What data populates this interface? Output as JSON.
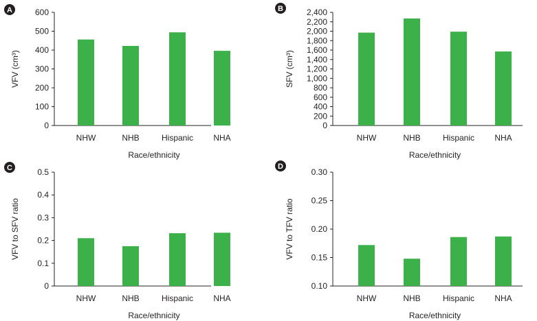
{
  "chart_data": [
    {
      "panel_label": "A",
      "type": "bar",
      "categories": [
        "NHW",
        "NHB",
        "Hispanic",
        "NHA"
      ],
      "values": [
        456,
        422,
        494,
        396
      ],
      "ylabel": "VFV (cm³)",
      "xlabel": "Race/ethnicity",
      "ylim": [
        0,
        600
      ],
      "yticks": [
        "0",
        "100",
        "200",
        "300",
        "400",
        "500",
        "600"
      ],
      "bar_color": "#3cb14a"
    },
    {
      "panel_label": "B",
      "type": "bar",
      "categories": [
        "NHW",
        "NHB",
        "Hispanic",
        "NHA"
      ],
      "values": [
        1970,
        2270,
        1990,
        1570
      ],
      "ylabel": "SFV (cm³)",
      "xlabel": "Race/ethnicity",
      "ylim": [
        0,
        2400
      ],
      "yticks": [
        "0",
        "200",
        "400",
        "600",
        "800",
        "1,000",
        "1,200",
        "1,400",
        "1,600",
        "1,800",
        "2,000",
        "2,200",
        "2,400"
      ],
      "bar_color": "#3cb14a"
    },
    {
      "panel_label": "C",
      "type": "bar",
      "categories": [
        "NHW",
        "NHB",
        "Hispanic",
        "NHA"
      ],
      "values": [
        0.21,
        0.175,
        0.232,
        0.234
      ],
      "ylabel": "VFV to SFV ratio",
      "xlabel": "Race/ethnicity",
      "ylim": [
        0,
        0.5
      ],
      "yticks": [
        "0",
        "0.1",
        "0.2",
        "0.3",
        "0.4",
        "0.5"
      ],
      "bar_color": "#3cb14a"
    },
    {
      "panel_label": "D",
      "type": "bar",
      "categories": [
        "NHW",
        "NHB",
        "Hispanic",
        "NHA"
      ],
      "values": [
        0.172,
        0.148,
        0.186,
        0.187
      ],
      "ylabel": "VFV to TFV ratio",
      "xlabel": "Race/ethnicity",
      "ylim": [
        0.1,
        0.3
      ],
      "yticks": [
        "0.10",
        "0.15",
        "0.20",
        "0.25",
        "0.30"
      ],
      "bar_color": "#3cb14a"
    }
  ]
}
